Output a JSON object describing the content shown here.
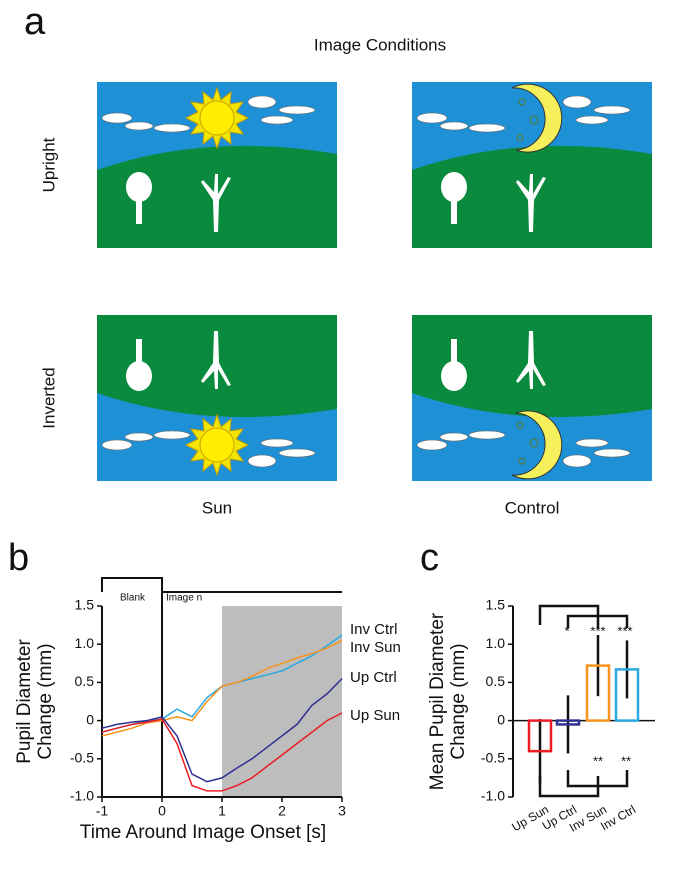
{
  "panel_a": {
    "label": "a",
    "title": "Image Conditions",
    "rows": [
      "Upright",
      "Inverted"
    ],
    "columns": [
      "Sun",
      "Control"
    ]
  },
  "chart_data": [
    {
      "type": "line",
      "panel_label": "b",
      "xlabel": "Time Around Image Onset [s]",
      "ylabel": [
        "Pupil Diameter",
        "Change (mm)"
      ],
      "x": [
        -1,
        -0.75,
        -0.5,
        -0.25,
        0,
        0.25,
        0.5,
        0.75,
        1,
        1.25,
        1.5,
        1.75,
        2,
        2.25,
        2.5,
        2.75,
        3
      ],
      "series": [
        {
          "name": "Inv Ctrl",
          "color": "#29a9e0",
          "values": [
            -0.15,
            -0.1,
            -0.05,
            0.0,
            0.02,
            0.15,
            0.05,
            0.3,
            0.45,
            0.5,
            0.55,
            0.6,
            0.65,
            0.75,
            0.85,
            0.98,
            1.12
          ]
        },
        {
          "name": "Inv Sun",
          "color": "#f7941d",
          "values": [
            -0.2,
            -0.15,
            -0.1,
            -0.03,
            0.0,
            0.05,
            0.0,
            0.25,
            0.45,
            0.5,
            0.58,
            0.68,
            0.75,
            0.82,
            0.88,
            0.95,
            1.05
          ]
        },
        {
          "name": "Up Ctrl",
          "color": "#2e3192",
          "values": [
            -0.1,
            -0.05,
            -0.02,
            0.0,
            0.05,
            -0.2,
            -0.7,
            -0.8,
            -0.75,
            -0.62,
            -0.5,
            -0.35,
            -0.2,
            -0.05,
            0.2,
            0.35,
            0.55
          ]
        },
        {
          "name": "Up Sun",
          "color": "#ed1c24",
          "values": [
            -0.15,
            -0.1,
            -0.05,
            -0.02,
            0.02,
            -0.3,
            -0.85,
            -0.92,
            -0.92,
            -0.85,
            -0.75,
            -0.6,
            -0.45,
            -0.3,
            -0.15,
            0.0,
            0.1
          ]
        }
      ],
      "xlim": [
        -1,
        3
      ],
      "ylim": [
        -1,
        1.5
      ],
      "xticks": [
        -1,
        0,
        1,
        2,
        3
      ],
      "yticks": [
        {
          "value": -1,
          "label": "-1.0"
        },
        -0.5,
        0,
        0.5,
        {
          "value": 1,
          "label": "1.0"
        },
        1.5
      ],
      "shaded_region": [
        1,
        3
      ],
      "period_labels": [
        "Blank",
        "Image n"
      ]
    },
    {
      "type": "bar",
      "panel_label": "c",
      "ylabel": [
        "Mean Pupil Diameter",
        "Change (mm)"
      ],
      "categories": [
        "Up Sun",
        "Up Ctrl",
        "Inv Sun",
        "Inv Ctrl"
      ],
      "values": [
        -0.4,
        -0.05,
        0.72,
        0.67
      ],
      "errors": [
        0.42,
        0.38,
        0.4,
        0.38
      ],
      "colors": [
        "#ed1c24",
        "#2e3192",
        "#f7941d",
        "#29a9e0"
      ],
      "ylim": [
        -1,
        1.5
      ],
      "yticks": [
        {
          "value": -1,
          "label": "-1.0"
        },
        -0.5,
        0,
        0.5,
        {
          "value": 1,
          "label": "1.0"
        },
        1.5
      ],
      "annotations": [
        "*",
        "***",
        "***",
        "**",
        "**"
      ]
    }
  ]
}
